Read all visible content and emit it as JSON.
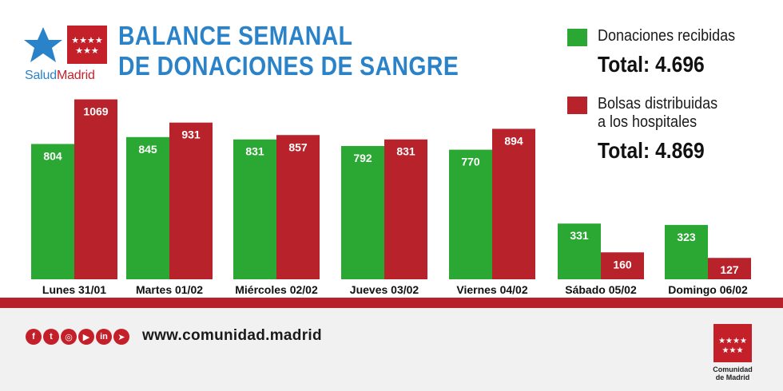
{
  "header": {
    "brand_prefix": "Salud",
    "brand_suffix": "Madrid",
    "title_line1": "BALANCE SEMANAL",
    "title_line2": "DE DONACIONES DE SANGRE"
  },
  "legend": [
    {
      "label_line1": "Donaciones recibidas",
      "label_line2": "",
      "total": "Total: 4.696",
      "color": "#2aa833"
    },
    {
      "label_line1": "Bolsas distribuidas",
      "label_line2": "a los hospitales",
      "total": "Total: 4.869",
      "color": "#b8222a"
    }
  ],
  "footer": {
    "social_icons": [
      "facebook-icon",
      "twitter-icon",
      "instagram-icon",
      "youtube-icon",
      "linkedin-icon",
      "telegram-icon"
    ],
    "social_glyphs": [
      "f",
      "t",
      "◎",
      "▶",
      "in",
      "➤"
    ],
    "url": "www.comunidad.madrid",
    "org_line1": "Comunidad",
    "org_line2": "de Madrid"
  },
  "chart_data": {
    "type": "bar",
    "title": "BALANCE SEMANAL DE DONACIONES DE SANGRE",
    "categories": [
      "Lunes 31/01",
      "Martes 01/02",
      "Miércoles 02/02",
      "Jueves 03/02",
      "Viernes 04/02",
      "Sábado 05/02",
      "Domingo 06/02"
    ],
    "series": [
      {
        "name": "Donaciones recibidas",
        "color": "#2aa833",
        "values": [
          804,
          845,
          831,
          792,
          770,
          331,
          323
        ]
      },
      {
        "name": "Bolsas distribuidas a los hospitales",
        "color": "#b8222a",
        "values": [
          1069,
          931,
          857,
          831,
          894,
          160,
          127
        ]
      }
    ],
    "ylim": [
      0,
      1100
    ],
    "grid": false,
    "legend_position": "right"
  }
}
